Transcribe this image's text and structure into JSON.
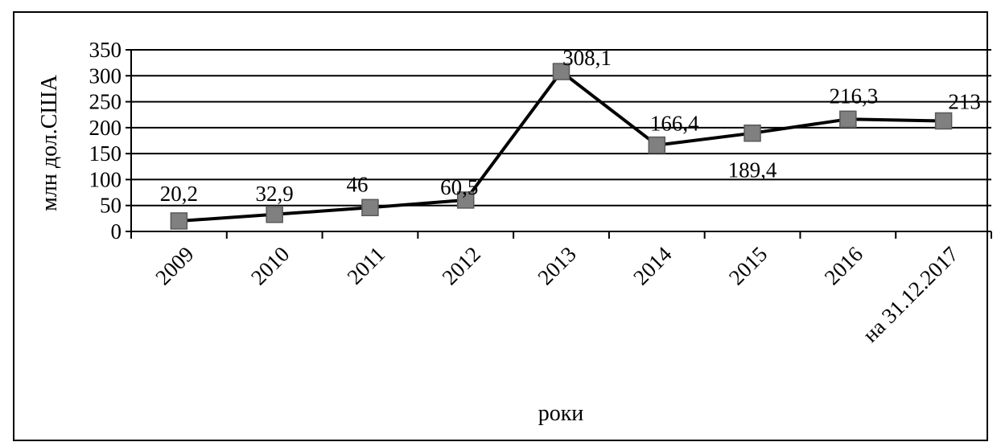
{
  "chart_data": {
    "type": "line",
    "title": "",
    "xlabel": "роки",
    "ylabel": "млн дол.США",
    "ylim": [
      0,
      350
    ],
    "y_ticks": [
      "0",
      "50",
      "100",
      "150",
      "200",
      "250",
      "300",
      "350"
    ],
    "categories": [
      "2009",
      "2010",
      "2011",
      "2012",
      "2013",
      "2014",
      "2015",
      "2016",
      "на 31.12.2017"
    ],
    "series": [
      {
        "values": [
          20.2,
          32.9,
          46,
          60.5,
          308.1,
          166.4,
          189.4,
          216.3,
          213
        ],
        "data_labels": [
          "20,2",
          "32,9",
          "46",
          "60,5",
          "308,1",
          "166,4",
          "189,4",
          "216,3",
          "213"
        ]
      }
    ],
    "grid": true,
    "legend": "none",
    "line_color": "#000000",
    "marker_color": "#808080",
    "marker_shape": "square"
  }
}
